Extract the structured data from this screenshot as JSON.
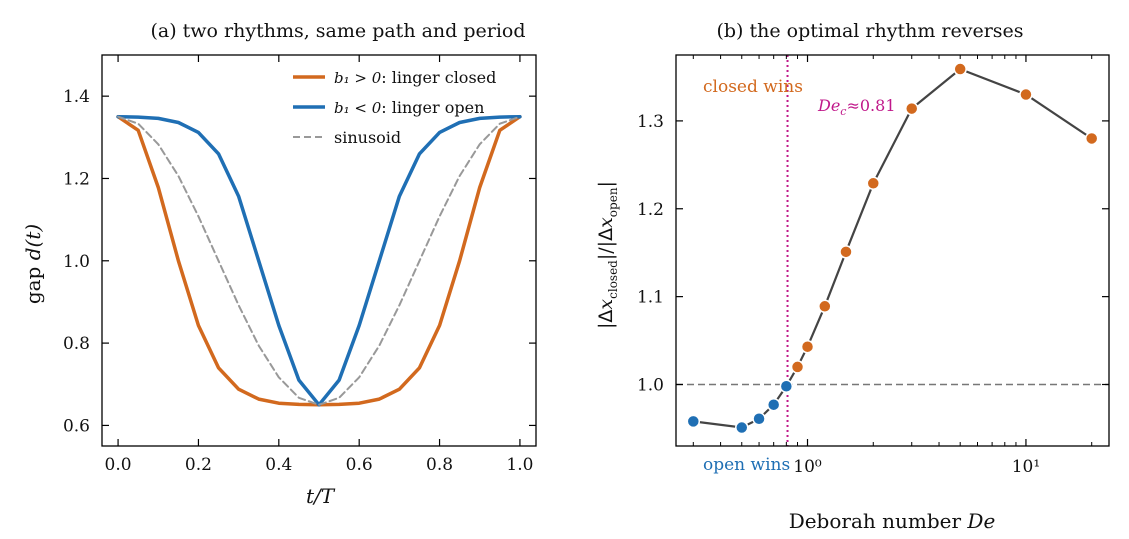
{
  "chart_data": [
    {
      "type": "line",
      "title": "(a) two rhythms, same path and period",
      "xlabel_var": "t/T",
      "ylabel_prefix": "gap ",
      "ylabel_var": "d(t)",
      "xlim": [
        -0.04,
        1.04
      ],
      "ylim": [
        0.55,
        1.5
      ],
      "xticks": [
        0.0,
        0.2,
        0.4,
        0.6,
        0.8,
        1.0
      ],
      "xtick_labels": [
        "0.0",
        "0.2",
        "0.4",
        "0.6",
        "0.8",
        "1.0"
      ],
      "yticks": [
        0.6,
        0.8,
        1.0,
        1.2,
        1.4
      ],
      "ytick_labels": [
        "0.6",
        "0.8",
        "1.0",
        "1.2",
        "1.4"
      ],
      "legend_position": "top-right",
      "x": [
        0.0,
        0.05,
        0.1,
        0.15,
        0.2,
        0.25,
        0.3,
        0.35,
        0.4,
        0.45,
        0.5,
        0.55,
        0.6,
        0.65,
        0.7,
        0.75,
        0.8,
        0.85,
        0.9,
        0.95,
        1.0
      ],
      "series": [
        {
          "name_math": "b₁ > 0",
          "name_text": ": linger closed",
          "color": "#d2691e",
          "style": "solid",
          "values": [
            1.35,
            1.317,
            1.178,
            1.0,
            0.843,
            0.74,
            0.688,
            0.664,
            0.654,
            0.651,
            0.65,
            0.651,
            0.654,
            0.664,
            0.688,
            0.74,
            0.843,
            1.0,
            1.178,
            1.317,
            1.35
          ]
        },
        {
          "name_math": "b₁ < 0",
          "name_text": ": linger open",
          "color": "#1f6fb4",
          "style": "solid",
          "values": [
            1.35,
            1.349,
            1.346,
            1.336,
            1.312,
            1.26,
            1.157,
            1.0,
            0.843,
            0.71,
            0.65,
            0.71,
            0.843,
            1.0,
            1.157,
            1.26,
            1.312,
            1.336,
            1.346,
            1.349,
            1.35
          ]
        },
        {
          "name_text": "sinusoid",
          "color": "#999999",
          "style": "dashed",
          "values": [
            1.35,
            1.333,
            1.283,
            1.206,
            1.108,
            1.0,
            0.892,
            0.794,
            0.717,
            0.667,
            0.65,
            0.667,
            0.717,
            0.794,
            0.892,
            1.0,
            1.108,
            1.206,
            1.283,
            1.333,
            1.35
          ]
        }
      ]
    },
    {
      "type": "line",
      "title": "(b) the optimal rhythm reverses",
      "xlabel": "Deborah number ",
      "xlabel_var": "De",
      "ylabel": "|Δx_closed| / |Δx_open|",
      "xscale": "log",
      "xlim": [
        0.25,
        24
      ],
      "ylim": [
        0.93,
        1.375
      ],
      "xticks": [
        1,
        10
      ],
      "xtick_labels": [
        "10⁰",
        "10¹"
      ],
      "yticks": [
        1.0,
        1.1,
        1.2,
        1.3
      ],
      "ytick_labels": [
        "1.0",
        "1.1",
        "1.2",
        "1.3"
      ],
      "reference_hline": 1.0,
      "threshold": {
        "x": 0.81,
        "label_var": "De",
        "label_sub": "c",
        "label_rest": "≈0.81",
        "color": "#c0188a"
      },
      "annotations": [
        {
          "text": "closed wins",
          "color": "#d2691e",
          "position": "top-left"
        },
        {
          "text": "open wins",
          "color": "#1f6fb4",
          "position": "bottom-left"
        }
      ],
      "line_color": "#444444",
      "points": [
        {
          "x": 0.3,
          "y": 0.958,
          "wins": "open"
        },
        {
          "x": 0.5,
          "y": 0.951,
          "wins": "open"
        },
        {
          "x": 0.6,
          "y": 0.961,
          "wins": "open"
        },
        {
          "x": 0.7,
          "y": 0.977,
          "wins": "open"
        },
        {
          "x": 0.8,
          "y": 0.998,
          "wins": "open"
        },
        {
          "x": 0.9,
          "y": 1.02,
          "wins": "closed"
        },
        {
          "x": 1.0,
          "y": 1.043,
          "wins": "closed"
        },
        {
          "x": 1.2,
          "y": 1.089,
          "wins": "closed"
        },
        {
          "x": 1.5,
          "y": 1.151,
          "wins": "closed"
        },
        {
          "x": 2.0,
          "y": 1.229,
          "wins": "closed"
        },
        {
          "x": 3.0,
          "y": 1.314,
          "wins": "closed"
        },
        {
          "x": 5.0,
          "y": 1.359,
          "wins": "closed"
        },
        {
          "x": 10.0,
          "y": 1.33,
          "wins": "closed"
        },
        {
          "x": 20.0,
          "y": 1.28,
          "wins": "closed"
        }
      ],
      "colors": {
        "open": "#1f6fb4",
        "closed": "#d2691e"
      }
    }
  ]
}
